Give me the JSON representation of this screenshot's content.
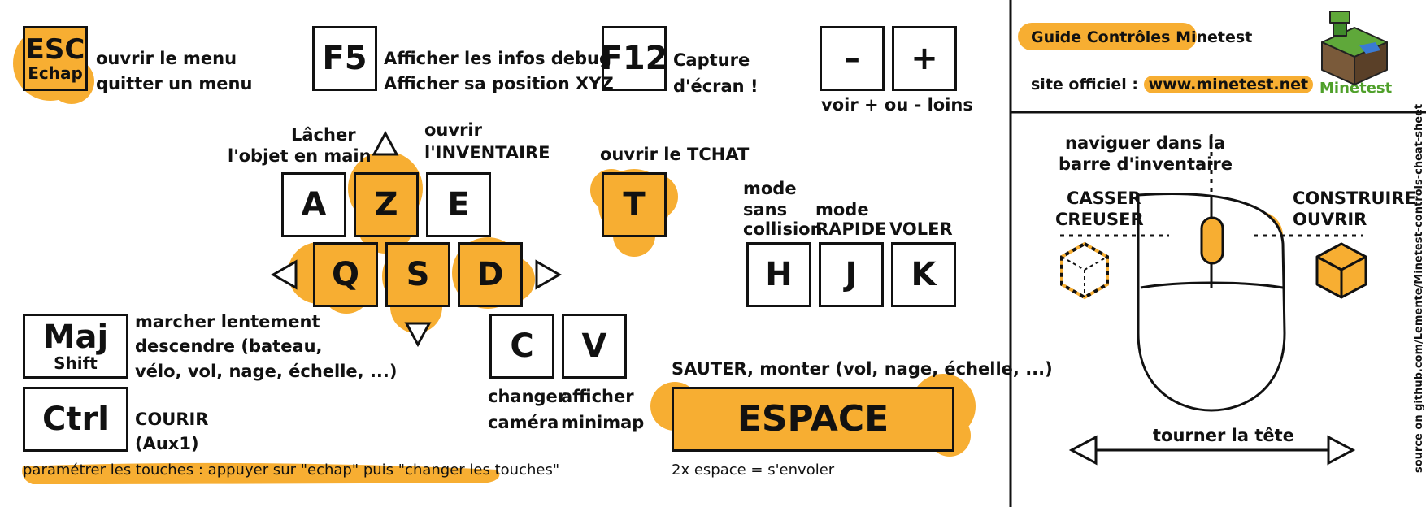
{
  "keys": {
    "esc": {
      "label": "ESC",
      "sub": "Echap"
    },
    "f5": {
      "label": "F5"
    },
    "f12": {
      "label": "F12"
    },
    "minus": {
      "label": "–"
    },
    "plus": {
      "label": "+"
    },
    "a": {
      "label": "A"
    },
    "z": {
      "label": "Z"
    },
    "e": {
      "label": "E"
    },
    "t": {
      "label": "T"
    },
    "q": {
      "label": "Q"
    },
    "s": {
      "label": "S"
    },
    "d": {
      "label": "D"
    },
    "h": {
      "label": "H"
    },
    "j": {
      "label": "J"
    },
    "k": {
      "label": "K"
    },
    "maj": {
      "label": "Maj",
      "sub": "Shift"
    },
    "ctrl": {
      "label": "Ctrl"
    },
    "c": {
      "label": "C"
    },
    "v": {
      "label": "V"
    },
    "espace": {
      "label": "ESPACE"
    }
  },
  "desc": {
    "esc_1": "ouvrir le menu",
    "esc_2": "quitter un menu",
    "f5_1": "Afficher les infos debug",
    "f5_2": "Afficher sa position XYZ",
    "f12_1": "Capture",
    "f12_2": "d'écran !",
    "zoom": "voir + ou - loins",
    "drop_1": "Lâcher",
    "drop_2": "l'objet en main",
    "inv_1": "ouvrir",
    "inv_2": "l'INVENTAIRE",
    "chat": "ouvrir le TCHAT",
    "noclip_1": "mode",
    "noclip_2": "sans",
    "noclip_3": "collision",
    "fast_1": "mode",
    "fast_2": "RAPIDE",
    "fly": "VOLER",
    "sneak_1": "marcher lentement",
    "sneak_2": "descendre (bateau,",
    "sneak_3": "vélo, vol, nage, échelle, ...)",
    "run_1": "COURIR",
    "run_2": "(Aux1)",
    "camera_1": "changer",
    "camera_2": "caméra",
    "minimap_1": "afficher",
    "minimap_2": "minimap",
    "jump": "SAUTER, monter (vol, nage, échelle, ...)",
    "double_jump": "2x espace = s'envoler",
    "settings": "paramétrer les touches : appuyer sur \"echap\" puis \"changer les touches\""
  },
  "panel": {
    "title": "Guide Contrôles Minetest",
    "site_label": "site officiel : ",
    "site_url": "www.minetest.net",
    "logo_label": "Minetest",
    "source": "source on github.com/Lemente/Minetest-controls-cheat-sheet"
  },
  "mouse": {
    "wheel_1": "naviguer dans la",
    "wheel_2": "barre d'inventaire",
    "left_1": "CASSER",
    "left_2": "CREUSER",
    "right_1": "CONSTRUIRE",
    "right_2": "OUVRIR",
    "turn": "tourner la tête"
  },
  "colors": {
    "accent": "#f7ae32",
    "logo_green": "#4fa02a"
  }
}
